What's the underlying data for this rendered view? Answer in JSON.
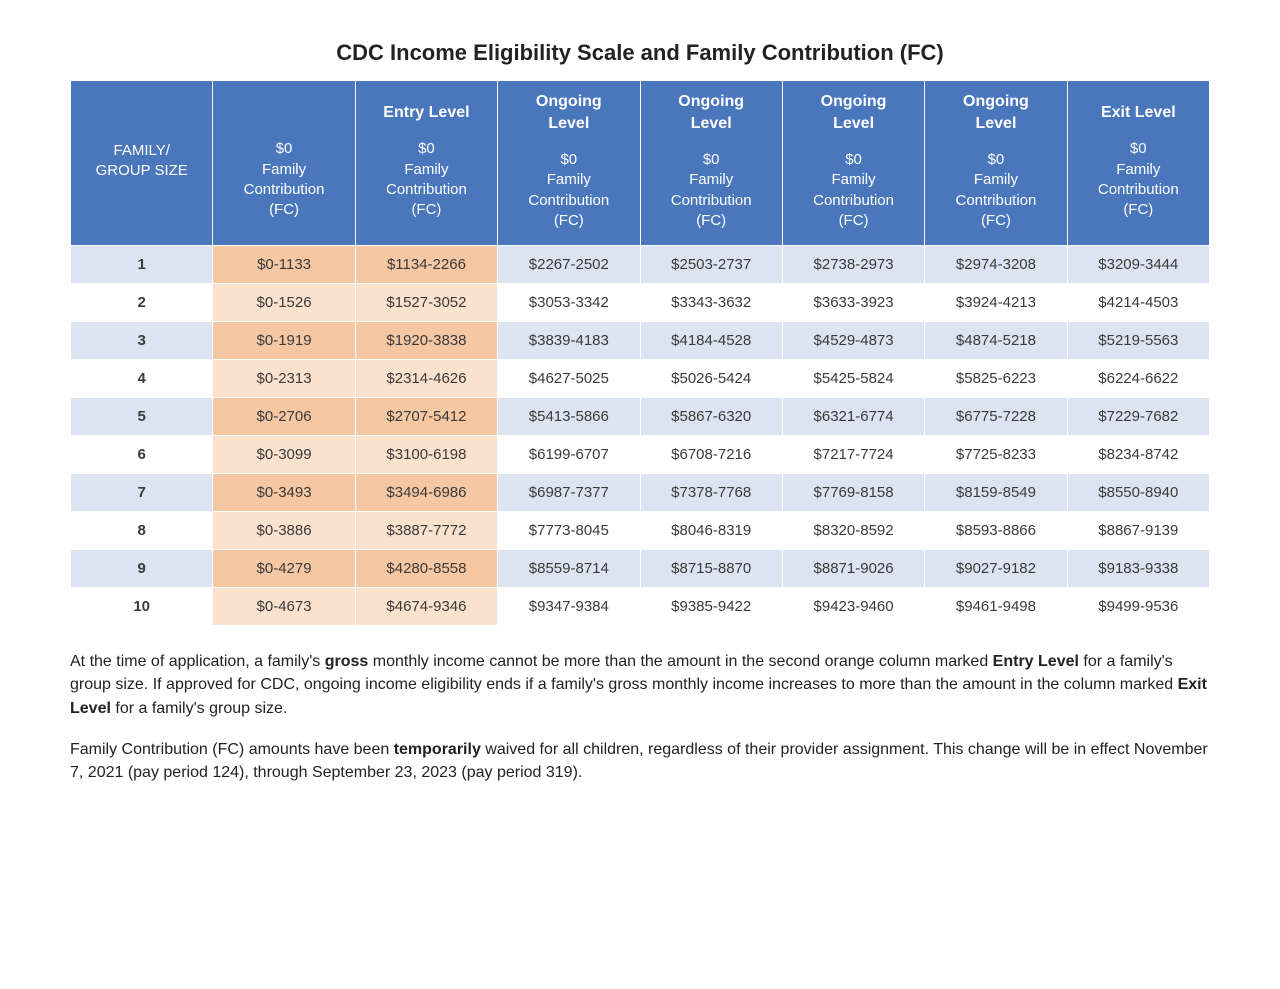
{
  "title": "CDC Income Eligibility Scale and Family Contribution (FC)",
  "colors": {
    "header_bg": "#4a76bc",
    "header_text": "#ffffff",
    "row_odd_bg": "#dbe4f0",
    "row_even_bg": "#ffffff",
    "highlight_odd_bg": "#f5c7a3",
    "highlight_even_bg": "#fbe2cf",
    "cell_text": "#3a3a3a",
    "border": "#ffffff"
  },
  "columns": [
    {
      "top": "",
      "sub": "FAMILY/\nGROUP SIZE",
      "is_rowhead": true,
      "highlight": false
    },
    {
      "top": "",
      "sub": "$0\nFamily\nContribution\n(FC)",
      "is_rowhead": false,
      "highlight": true
    },
    {
      "top": "Entry Level",
      "sub": "$0\nFamily\nContribution\n(FC)",
      "is_rowhead": false,
      "highlight": true
    },
    {
      "top": "Ongoing\nLevel",
      "sub": "$0\nFamily\nContribution\n(FC)",
      "is_rowhead": false,
      "highlight": false
    },
    {
      "top": "Ongoing\nLevel",
      "sub": "$0\nFamily\nContribution\n(FC)",
      "is_rowhead": false,
      "highlight": false
    },
    {
      "top": "Ongoing\nLevel",
      "sub": "$0\nFamily\nContribution\n(FC)",
      "is_rowhead": false,
      "highlight": false
    },
    {
      "top": "Ongoing\nLevel",
      "sub": "$0\nFamily\nContribution\n(FC)",
      "is_rowhead": false,
      "highlight": false
    },
    {
      "top": "Exit Level",
      "sub": "$0\nFamily\nContribution\n(FC)",
      "is_rowhead": false,
      "highlight": false
    }
  ],
  "rows": [
    [
      "1",
      "$0-1133",
      "$1134-2266",
      "$2267-2502",
      "$2503-2737",
      "$2738-2973",
      "$2974-3208",
      "$3209-3444"
    ],
    [
      "2",
      "$0-1526",
      "$1527-3052",
      "$3053-3342",
      "$3343-3632",
      "$3633-3923",
      "$3924-4213",
      "$4214-4503"
    ],
    [
      "3",
      "$0-1919",
      "$1920-3838",
      "$3839-4183",
      "$4184-4528",
      "$4529-4873",
      "$4874-5218",
      "$5219-5563"
    ],
    [
      "4",
      "$0-2313",
      "$2314-4626",
      "$4627-5025",
      "$5026-5424",
      "$5425-5824",
      "$5825-6223",
      "$6224-6622"
    ],
    [
      "5",
      "$0-2706",
      "$2707-5412",
      "$5413-5866",
      "$5867-6320",
      "$6321-6774",
      "$6775-7228",
      "$7229-7682"
    ],
    [
      "6",
      "$0-3099",
      "$3100-6198",
      "$6199-6707",
      "$6708-7216",
      "$7217-7724",
      "$7725-8233",
      "$8234-8742"
    ],
    [
      "7",
      "$0-3493",
      "$3494-6986",
      "$6987-7377",
      "$7378-7768",
      "$7769-8158",
      "$8159-8549",
      "$8550-8940"
    ],
    [
      "8",
      "$0-3886",
      "$3887-7772",
      "$7773-8045",
      "$8046-8319",
      "$8320-8592",
      "$8593-8866",
      "$8867-9139"
    ],
    [
      "9",
      "$0-4279",
      "$4280-8558",
      "$8559-8714",
      "$8715-8870",
      "$8871-9026",
      "$9027-9182",
      "$9183-9338"
    ],
    [
      "10",
      "$0-4673",
      "$4674-9346",
      "$9347-9384",
      "$9385-9422",
      "$9423-9460",
      "$9461-9498",
      "$9499-9536"
    ]
  ],
  "notes": [
    "At the time of application, a family's <strong>gross</strong> monthly income cannot be more than the amount in the second orange column marked <strong>Entry Level</strong> for a family's group size. If approved for CDC, ongoing income eligibility ends if a family's gross monthly income increases to more than the amount in the column marked <strong>Exit Level</strong> for a family's group size.",
    "Family Contribution (FC) amounts have been <strong>temporarily</strong> waived for all children, regardless of their provider assignment. This change will be in effect November 7, 2021 (pay period 124), through September 23, 2023 (pay period 319)."
  ]
}
